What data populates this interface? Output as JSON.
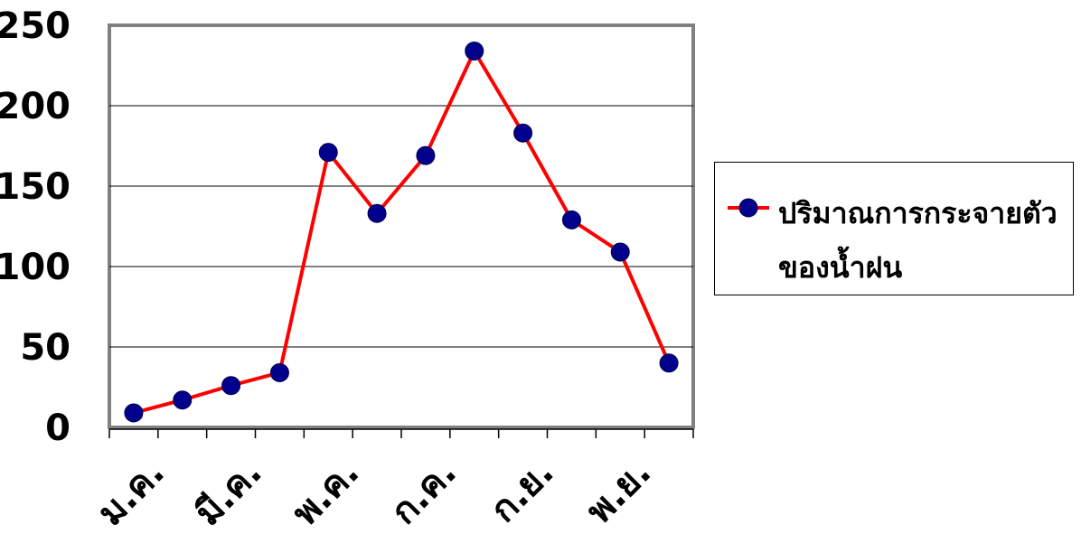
{
  "chart_data": {
    "type": "line",
    "title": "",
    "xlabel": "",
    "ylabel": "",
    "ylim": [
      0,
      250
    ],
    "yticks": [
      "0",
      "50",
      "100",
      "150",
      "200",
      "250"
    ],
    "xtick_labels": [
      "ม.ค.",
      "มี.ค.",
      "พ.ค.",
      "ก.ค.",
      "ก.ย.",
      "พ.ย."
    ],
    "x_count": 12,
    "grid": true,
    "legend_position": "right",
    "series": [
      {
        "name": "ปริมาณการกระจายตัวของน้ำฝน",
        "values": [
          9,
          17,
          26,
          34,
          171,
          133,
          169,
          234,
          183,
          129,
          109,
          40
        ],
        "line_color": "#ff0000",
        "marker_color": "#00008b"
      }
    ]
  },
  "legend": {
    "label": "ปริมาณการกระจายตัวของน้ำฝน"
  }
}
